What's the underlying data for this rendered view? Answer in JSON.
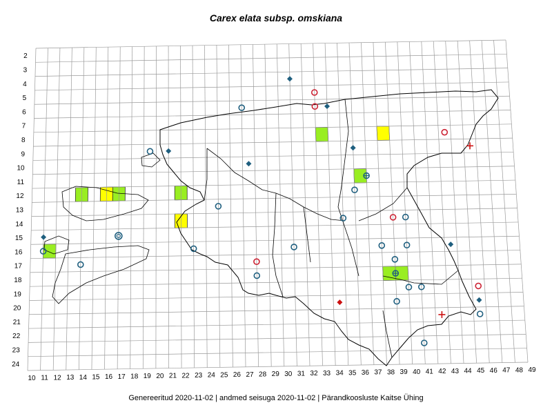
{
  "title": "Carex elata subsp. omskiana",
  "footer": "Genereeritud 2020-11-02  |  andmed seisuga 2020-11-02  |  Pärandkoosluste Kaitse Ühing",
  "grid": {
    "row_labels": [
      "2",
      "3",
      "4",
      "5",
      "6",
      "7",
      "8",
      "9",
      "10",
      "11",
      "12",
      "13",
      "14",
      "15",
      "16",
      "17",
      "18",
      "19",
      "20",
      "21",
      "22",
      "23",
      "24"
    ],
    "col_labels": [
      "10",
      "11",
      "12",
      "13",
      "14",
      "15",
      "16",
      "17",
      "18",
      "19",
      "20",
      "21",
      "22",
      "23",
      "24",
      "25",
      "26",
      "27",
      "28",
      "29",
      "30",
      "31",
      "32",
      "33",
      "34",
      "35",
      "36",
      "37",
      "38",
      "39",
      "40",
      "41",
      "42",
      "43",
      "44",
      "45",
      "46",
      "47",
      "48",
      "49"
    ]
  },
  "colors": {
    "grid": "#9a9a9a",
    "border": "#000000",
    "green_cell": "#99ee22",
    "yellow_cell": "#ffff00",
    "circle_blue": "#1f5f7f",
    "circle_red": "#cc2233",
    "diamond_blue": "#1f5f7f",
    "diamond_red": "#cc1111",
    "cross_red": "#cc1111"
  },
  "legend_note": "",
  "markers": [
    {
      "type": "diamond-blue",
      "col": 30.5,
      "row": 4
    },
    {
      "type": "circle-red",
      "col": 32.5,
      "row": 5
    },
    {
      "type": "circle-red",
      "col": 32.5,
      "row": 6
    },
    {
      "type": "diamond-blue",
      "col": 33.5,
      "row": 6
    },
    {
      "type": "circle-blue",
      "col": 26.5,
      "row": 6
    },
    {
      "type": "circle-red",
      "col": 43,
      "row": 8
    },
    {
      "type": "cross-red",
      "col": 45,
      "row": 9
    },
    {
      "type": "diamond-blue",
      "col": 35.5,
      "row": 9
    },
    {
      "type": "circle-blue",
      "col": 19,
      "row": 9
    },
    {
      "type": "diamond-blue",
      "col": 20.5,
      "row": 9
    },
    {
      "type": "diamond-blue",
      "col": 27,
      "row": 10
    },
    {
      "type": "circle-cross-blue",
      "col": 36.5,
      "row": 11
    },
    {
      "type": "circle-blue",
      "col": 35.5,
      "row": 12
    },
    {
      "type": "circle-blue",
      "col": 24.5,
      "row": 13
    },
    {
      "type": "circle-blue",
      "col": 34.5,
      "row": 14
    },
    {
      "type": "circle-red",
      "col": 38.5,
      "row": 14
    },
    {
      "type": "circle-blue",
      "col": 39.5,
      "row": 14
    },
    {
      "type": "diamond-blue",
      "col": 10.5,
      "row": 15
    },
    {
      "type": "circle-double-blue",
      "col": 16.5,
      "row": 15
    },
    {
      "type": "circle-blue",
      "col": 10.5,
      "row": 16
    },
    {
      "type": "circle-blue",
      "col": 30.5,
      "row": 16
    },
    {
      "type": "circle-blue",
      "col": 37.5,
      "row": 16
    },
    {
      "type": "circle-blue",
      "col": 39.5,
      "row": 16
    },
    {
      "type": "diamond-blue",
      "col": 43,
      "row": 16
    },
    {
      "type": "circle-blue",
      "col": 22.5,
      "row": 16
    },
    {
      "type": "circle-blue",
      "col": 13.5,
      "row": 17
    },
    {
      "type": "circle-red",
      "col": 27.5,
      "row": 17
    },
    {
      "type": "circle-blue",
      "col": 38.5,
      "row": 17
    },
    {
      "type": "circle-blue",
      "col": 27.5,
      "row": 18
    },
    {
      "type": "circle-cross-blue",
      "col": 38.5,
      "row": 18
    },
    {
      "type": "circle-blue",
      "col": 39.5,
      "row": 19
    },
    {
      "type": "circle-blue",
      "col": 40.5,
      "row": 19
    },
    {
      "type": "circle-red",
      "col": 45,
      "row": 19
    },
    {
      "type": "diamond-blue",
      "col": 45,
      "row": 20
    },
    {
      "type": "circle-blue",
      "col": 38.5,
      "row": 20
    },
    {
      "type": "diamond-red",
      "col": 34,
      "row": 20
    },
    {
      "type": "circle-blue",
      "col": 45,
      "row": 21
    },
    {
      "type": "cross-red",
      "col": 42,
      "row": 21
    },
    {
      "type": "circle-blue",
      "col": 40.5,
      "row": 23
    }
  ],
  "cells": [
    {
      "color": "green",
      "col": 33,
      "row": 8
    },
    {
      "color": "yellow",
      "col": 38,
      "row": 8
    },
    {
      "color": "green",
      "col": 36,
      "row": 11
    },
    {
      "color": "green",
      "col": 13.5,
      "row": 12
    },
    {
      "color": "yellow",
      "col": 15.5,
      "row": 12
    },
    {
      "color": "green",
      "col": 16.5,
      "row": 12
    },
    {
      "color": "green",
      "col": 21.5,
      "row": 12
    },
    {
      "color": "yellow",
      "col": 21.5,
      "row": 14
    },
    {
      "color": "green",
      "col": 11,
      "row": 16
    },
    {
      "color": "green",
      "col": 38,
      "row": 18
    },
    {
      "color": "green",
      "col": 39,
      "row": 18
    }
  ]
}
